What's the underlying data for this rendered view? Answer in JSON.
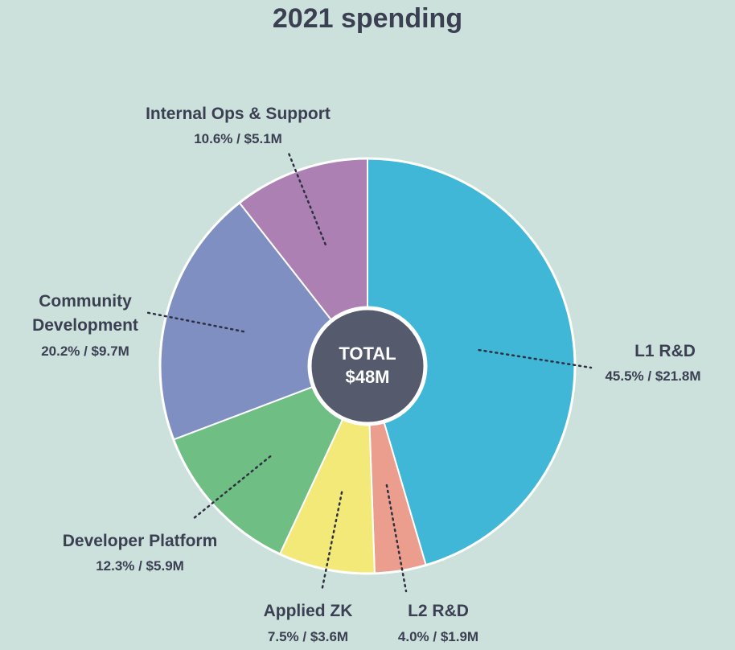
{
  "chart_data": {
    "type": "pie",
    "title": "2021 spending",
    "center": {
      "line1": "TOTAL",
      "line2": "$48M"
    },
    "slices": [
      {
        "name": "L1 R&D",
        "percent": 45.5,
        "value_label": "45.5% / $21.8M",
        "color": "#40b7d7"
      },
      {
        "name": "L2 R&D",
        "percent": 4.0,
        "value_label": "4.0% / $1.9M",
        "color": "#eb9e8e"
      },
      {
        "name": "Applied ZK",
        "percent": 7.5,
        "value_label": "7.5% / $3.6M",
        "color": "#f3e979"
      },
      {
        "name": "Developer Platform",
        "percent": 12.3,
        "value_label": "12.3% / $5.9M",
        "color": "#6fbe83"
      },
      {
        "name": "Community Development",
        "name_lines": [
          "Community",
          "Development"
        ],
        "percent": 20.2,
        "value_label": "20.2% / $9.7M",
        "color": "#7f8fc2"
      },
      {
        "name": "Internal Ops & Support",
        "percent": 10.6,
        "value_label": "10.6% / $5.1M",
        "color": "#ad80b4"
      }
    ],
    "center_color": "#555a6d"
  }
}
